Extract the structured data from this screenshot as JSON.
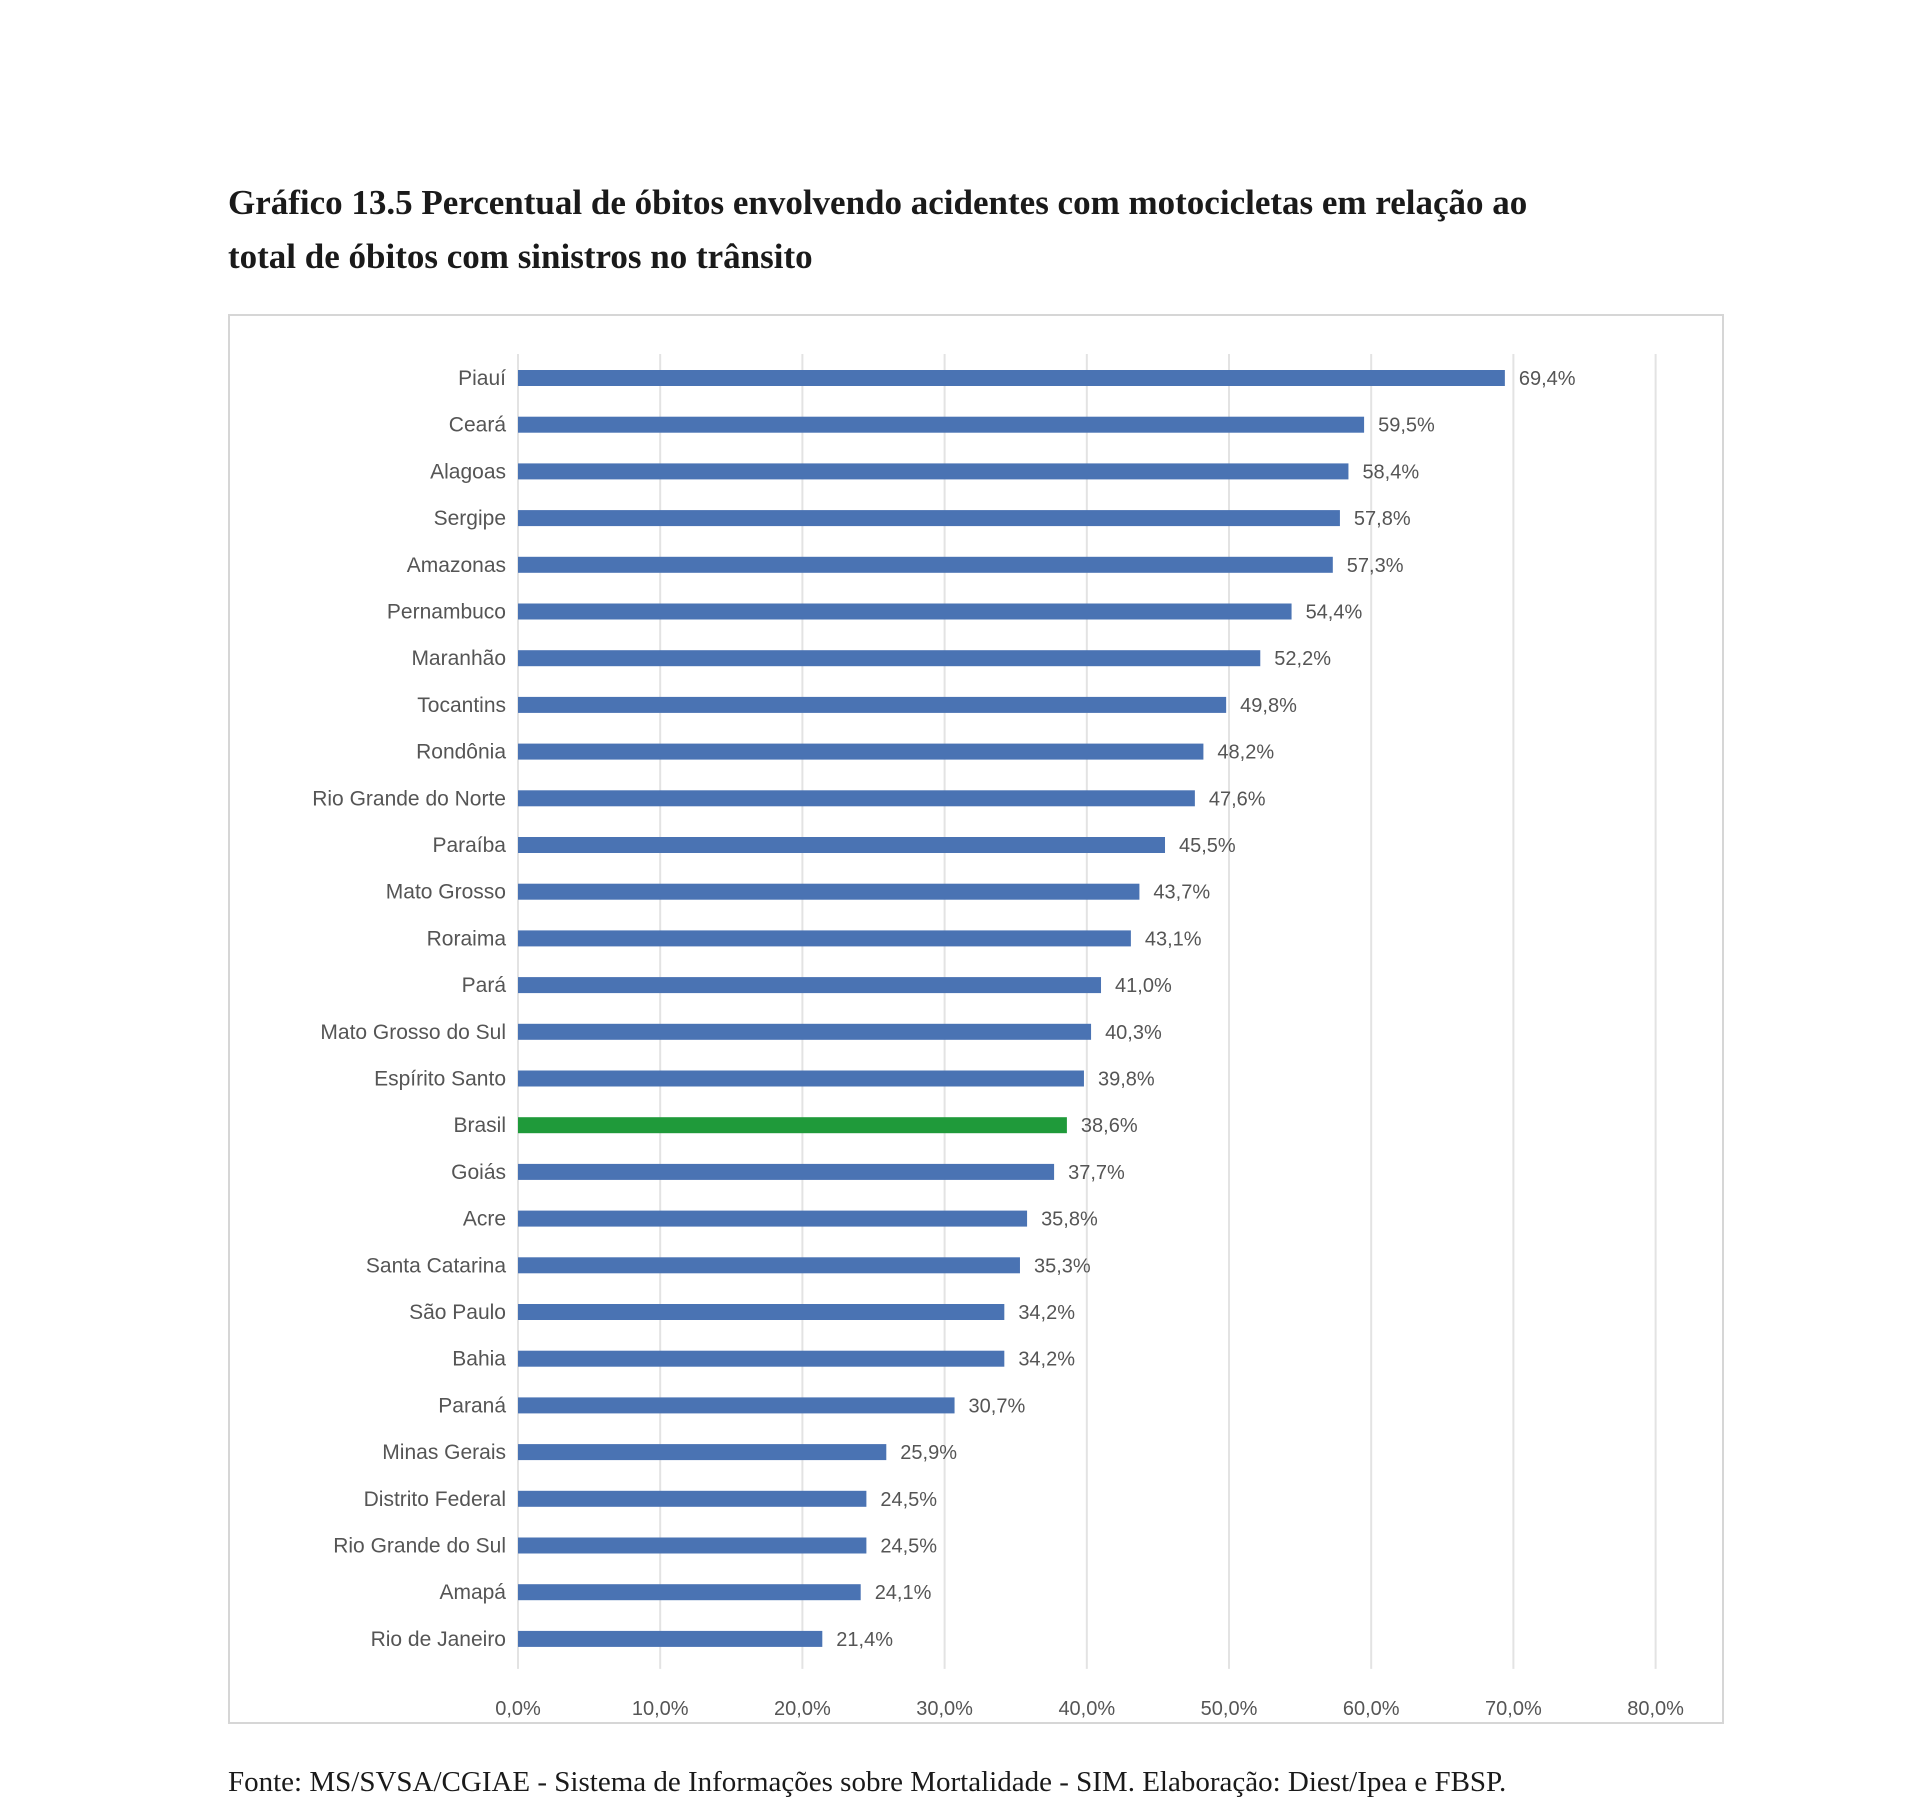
{
  "title_line1": "Gráfico 13.5 Percentual de óbitos envolvendo acidentes com motocicletas em relação ao",
  "title_line2": "total de óbitos com sinistros no trânsito",
  "source": "Fonte: MS/SVSA/CGIAE - Sistema de Informações sobre Mortalidade - SIM. Elaboração: Diest/Ipea e FBSP.",
  "colors": {
    "bar": "#4a73b3",
    "highlight": "#1f9a3a",
    "grid": "#e3e3e3",
    "label": "#555555"
  },
  "chart_data": {
    "type": "bar",
    "orientation": "horizontal",
    "title": "Gráfico 13.5 Percentual de óbitos envolvendo acidentes com motocicletas em relação ao total de óbitos com sinistros no trânsito",
    "xlabel": "",
    "ylabel": "",
    "xlim": [
      0,
      80
    ],
    "grid": true,
    "highlight": "Brasil",
    "ticks": [
      "0,0%",
      "10,0%",
      "20,0%",
      "30,0%",
      "40,0%",
      "50,0%",
      "60,0%",
      "70,0%",
      "80,0%"
    ],
    "categories": [
      "Piauí",
      "Ceará",
      "Alagoas",
      "Sergipe",
      "Amazonas",
      "Pernambuco",
      "Maranhão",
      "Tocantins",
      "Rondônia",
      "Rio Grande do Norte",
      "Paraíba",
      "Mato Grosso",
      "Roraima",
      "Pará",
      "Mato Grosso do Sul",
      "Espírito Santo",
      "Brasil",
      "Goiás",
      "Acre",
      "Santa Catarina",
      "São Paulo",
      "Bahia",
      "Paraná",
      "Minas Gerais",
      "Distrito Federal",
      "Rio Grande do Sul",
      "Amapá",
      "Rio de Janeiro"
    ],
    "values": [
      69.4,
      59.5,
      58.4,
      57.8,
      57.3,
      54.4,
      52.2,
      49.8,
      48.2,
      47.6,
      45.5,
      43.7,
      43.1,
      41.0,
      40.3,
      39.8,
      38.6,
      37.7,
      35.8,
      35.3,
      34.2,
      34.2,
      30.7,
      25.9,
      24.5,
      24.5,
      24.1,
      21.4
    ],
    "labels": [
      "69,4%",
      "59,5%",
      "58,4%",
      "57,8%",
      "57,3%",
      "54,4%",
      "52,2%",
      "49,8%",
      "48,2%",
      "47,6%",
      "45,5%",
      "43,7%",
      "43,1%",
      "41,0%",
      "40,3%",
      "39,8%",
      "38,6%",
      "37,7%",
      "35,8%",
      "35,3%",
      "34,2%",
      "34,2%",
      "30,7%",
      "25,9%",
      "24,5%",
      "24,5%",
      "24,1%",
      "21,4%"
    ]
  }
}
